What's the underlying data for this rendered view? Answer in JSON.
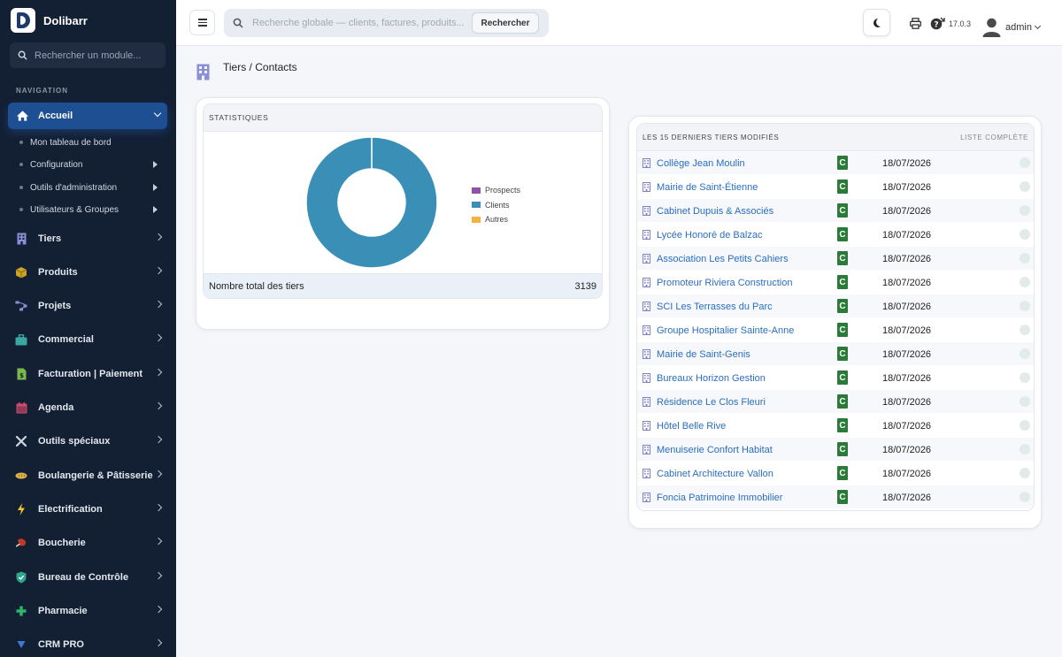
{
  "app": {
    "name": "Dolibarr",
    "version": "17.0.3",
    "user": "admin"
  },
  "sidebar": {
    "search_placeholder": "Rechercher un module...",
    "nav_title": "NAVIGATION",
    "active": {
      "label": "Accueil",
      "icon": "home-icon"
    },
    "subitems": [
      {
        "label": "Mon tableau de bord",
        "has_children": false
      },
      {
        "label": "Configuration",
        "has_children": true
      },
      {
        "label": "Outils d'administration",
        "has_children": true
      },
      {
        "label": "Utilisateurs & Groupes",
        "has_children": true
      }
    ],
    "items": [
      {
        "label": "Tiers",
        "icon": "building-icon",
        "color": "#8a8fd6"
      },
      {
        "label": "Produits",
        "icon": "box-icon",
        "color": "#c9a227"
      },
      {
        "label": "Projets",
        "icon": "project-icon",
        "color": "#8a8fd6"
      },
      {
        "label": "Commercial",
        "icon": "briefcase-icon",
        "color": "#3aa7a0"
      },
      {
        "label": "Facturation | Paiement",
        "icon": "invoice-icon",
        "color": "#7bb84a"
      },
      {
        "label": "Agenda",
        "icon": "calendar-icon",
        "color": "#d24b6b"
      },
      {
        "label": "Outils spéciaux",
        "icon": "tools-icon",
        "color": "#cfd6e0"
      },
      {
        "label": "Boulangerie & Pâtisserie",
        "icon": "bread-icon",
        "color": "#d9b24a"
      },
      {
        "label": "Electrification",
        "icon": "bolt-icon",
        "color": "#f2c230"
      },
      {
        "label": "Boucherie",
        "icon": "meat-icon",
        "color": "#c03a2b"
      },
      {
        "label": "Bureau de Contrôle",
        "icon": "shield-icon",
        "color": "#2fa58a"
      },
      {
        "label": "Pharmacie",
        "icon": "plus-icon",
        "color": "#2fb56a"
      },
      {
        "label": "CRM PRO",
        "icon": "filter-icon",
        "color": "#3a7bd5"
      }
    ]
  },
  "header": {
    "search_placeholder": "Recherche globale — clients, factures, produits...",
    "search_button": "Rechercher"
  },
  "page": {
    "title": "Tiers / Contacts"
  },
  "stats": {
    "title": "STATISTIQUES",
    "total_label": "Nombre total des tiers",
    "total_value": "3139",
    "colors": {
      "Prospects": "#8e52a8",
      "Clients": "#3a8fb7",
      "Autres": "#f3b33d"
    }
  },
  "chart_data": {
    "type": "pie",
    "categories": [
      "Prospects",
      "Clients",
      "Autres"
    ],
    "values": [
      1,
      3138,
      0
    ],
    "legend": "right"
  },
  "latest": {
    "title": "LES 15 DERNIERS TIERS MODIFIÉS",
    "full_list": "LISTE COMPLÈTE",
    "rows": [
      {
        "name": "Collège Jean Moulin",
        "type": "C",
        "date": "18/07/2026"
      },
      {
        "name": "Mairie de Saint-Étienne",
        "type": "C",
        "date": "18/07/2026"
      },
      {
        "name": "Cabinet Dupuis & Associés",
        "type": "C",
        "date": "18/07/2026"
      },
      {
        "name": "Lycée Honoré de Balzac",
        "type": "C",
        "date": "18/07/2026"
      },
      {
        "name": "Association Les Petits Cahiers",
        "type": "C",
        "date": "18/07/2026"
      },
      {
        "name": "Promoteur Riviera Construction",
        "type": "C",
        "date": "18/07/2026"
      },
      {
        "name": "SCI Les Terrasses du Parc",
        "type": "C",
        "date": "18/07/2026"
      },
      {
        "name": "Groupe Hospitalier Sainte-Anne",
        "type": "C",
        "date": "18/07/2026"
      },
      {
        "name": "Mairie de Saint-Genis",
        "type": "C",
        "date": "18/07/2026"
      },
      {
        "name": "Bureaux Horizon Gestion",
        "type": "C",
        "date": "18/07/2026"
      },
      {
        "name": "Résidence Le Clos Fleuri",
        "type": "C",
        "date": "18/07/2026"
      },
      {
        "name": "Hôtel Belle Rive",
        "type": "C",
        "date": "18/07/2026"
      },
      {
        "name": "Menuiserie Confort Habitat",
        "type": "C",
        "date": "18/07/2026"
      },
      {
        "name": "Cabinet Architecture Vallon",
        "type": "C",
        "date": "18/07/2026"
      },
      {
        "name": "Foncia Patrimoine Immobilier",
        "type": "C",
        "date": "18/07/2026"
      }
    ]
  }
}
